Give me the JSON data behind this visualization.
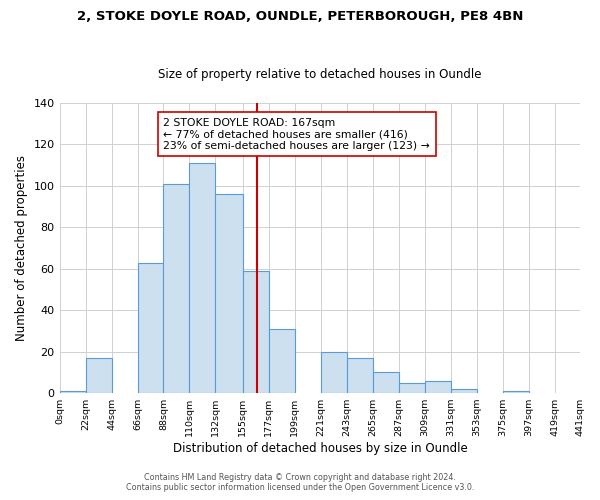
{
  "title_line1": "2, STOKE DOYLE ROAD, OUNDLE, PETERBOROUGH, PE8 4BN",
  "title_line2": "Size of property relative to detached houses in Oundle",
  "xlabel": "Distribution of detached houses by size in Oundle",
  "ylabel": "Number of detached properties",
  "footer_line1": "Contains HM Land Registry data © Crown copyright and database right 2024.",
  "footer_line2": "Contains public sector information licensed under the Open Government Licence v3.0.",
  "bin_edges": [
    0,
    22,
    44,
    66,
    88,
    110,
    132,
    155,
    177,
    199,
    221,
    243,
    265,
    287,
    309,
    331,
    353,
    375,
    397,
    419,
    441
  ],
  "bar_heights": [
    1,
    17,
    0,
    63,
    101,
    111,
    96,
    59,
    31,
    0,
    20,
    17,
    10,
    5,
    6,
    2,
    0,
    1,
    0,
    0
  ],
  "bar_color": "#cce0f0",
  "bar_edgecolor": "#5b9bd5",
  "vline_x": 167,
  "vline_color": "#cc0000",
  "annotation_line1": "2 STOKE DOYLE ROAD: 167sqm",
  "annotation_line2": "← 77% of detached houses are smaller (416)",
  "annotation_line3": "23% of semi-detached houses are larger (123) →",
  "annotation_box_edgecolor": "#cc0000",
  "annotation_box_facecolor": "#ffffff",
  "ylim": [
    0,
    140
  ],
  "yticks": [
    0,
    20,
    40,
    60,
    80,
    100,
    120,
    140
  ],
  "xlim": [
    0,
    441
  ],
  "background_color": "#ffffff",
  "grid_color": "#d0d0d0",
  "title1_fontsize": 9.5,
  "title2_fontsize": 8.5,
  "ylabel_fontsize": 8.5,
  "xlabel_fontsize": 8.5,
  "ytick_fontsize": 8,
  "xtick_fontsize": 6.8,
  "footer_fontsize": 5.8,
  "annot_fontsize": 7.8
}
